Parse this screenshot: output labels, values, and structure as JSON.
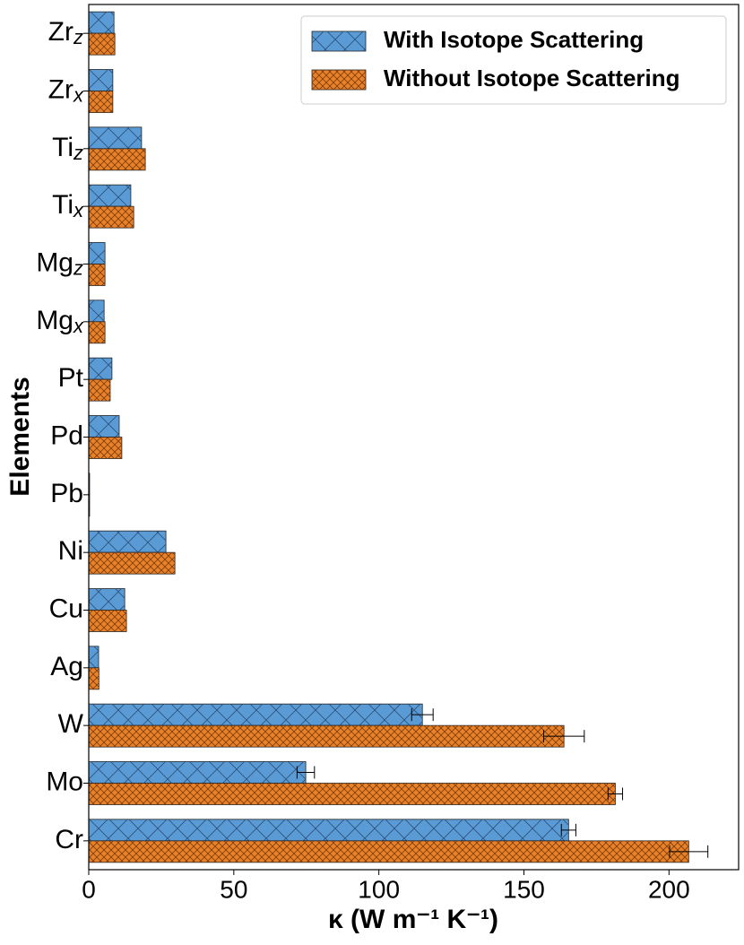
{
  "chart_data": {
    "type": "grouped-hbar",
    "y_label": "Elements",
    "x_label": "κ (W m⁻¹ K⁻¹)",
    "categories": [
      "Cr",
      "Mo",
      "W",
      "Ag",
      "Cu",
      "Ni",
      "Pb",
      "Pd",
      "Pt",
      "Mg",
      "Mg",
      "Ti",
      "Ti",
      "Zr",
      "Zr"
    ],
    "category_subscripts": [
      null,
      null,
      null,
      null,
      null,
      null,
      null,
      null,
      null,
      "x",
      "z",
      "x",
      "z",
      "x",
      "z"
    ],
    "series": [
      {
        "name": "With Isotope Scattering",
        "color": "#5b9bd5",
        "hatch": "wide",
        "values": [
          165.4,
          74.8,
          115,
          3.4,
          12.4,
          26.6,
          0.3,
          10.5,
          8,
          5.3,
          5.6,
          14.5,
          18.2,
          8.3,
          8.7
        ],
        "errors": [
          2.5,
          3,
          3.7,
          null,
          null,
          null,
          null,
          null,
          null,
          null,
          null,
          null,
          null,
          null,
          null
        ]
      },
      {
        "name": "Without Isotope Scattering",
        "color": "#e8822a",
        "hatch": "dense",
        "values": [
          206.8,
          181.5,
          163.8,
          3.5,
          13,
          29.7,
          0.3,
          11.4,
          7.4,
          5.6,
          5.6,
          15.5,
          19.5,
          8.3,
          9
        ],
        "errors": [
          6.6,
          2.5,
          7,
          null,
          null,
          null,
          null,
          null,
          null,
          null,
          null,
          null,
          null,
          null,
          null
        ]
      }
    ],
    "xlim": [
      0,
      224
    ],
    "xticks": [
      0,
      50,
      100,
      150,
      200
    ],
    "legend": "upper right"
  }
}
